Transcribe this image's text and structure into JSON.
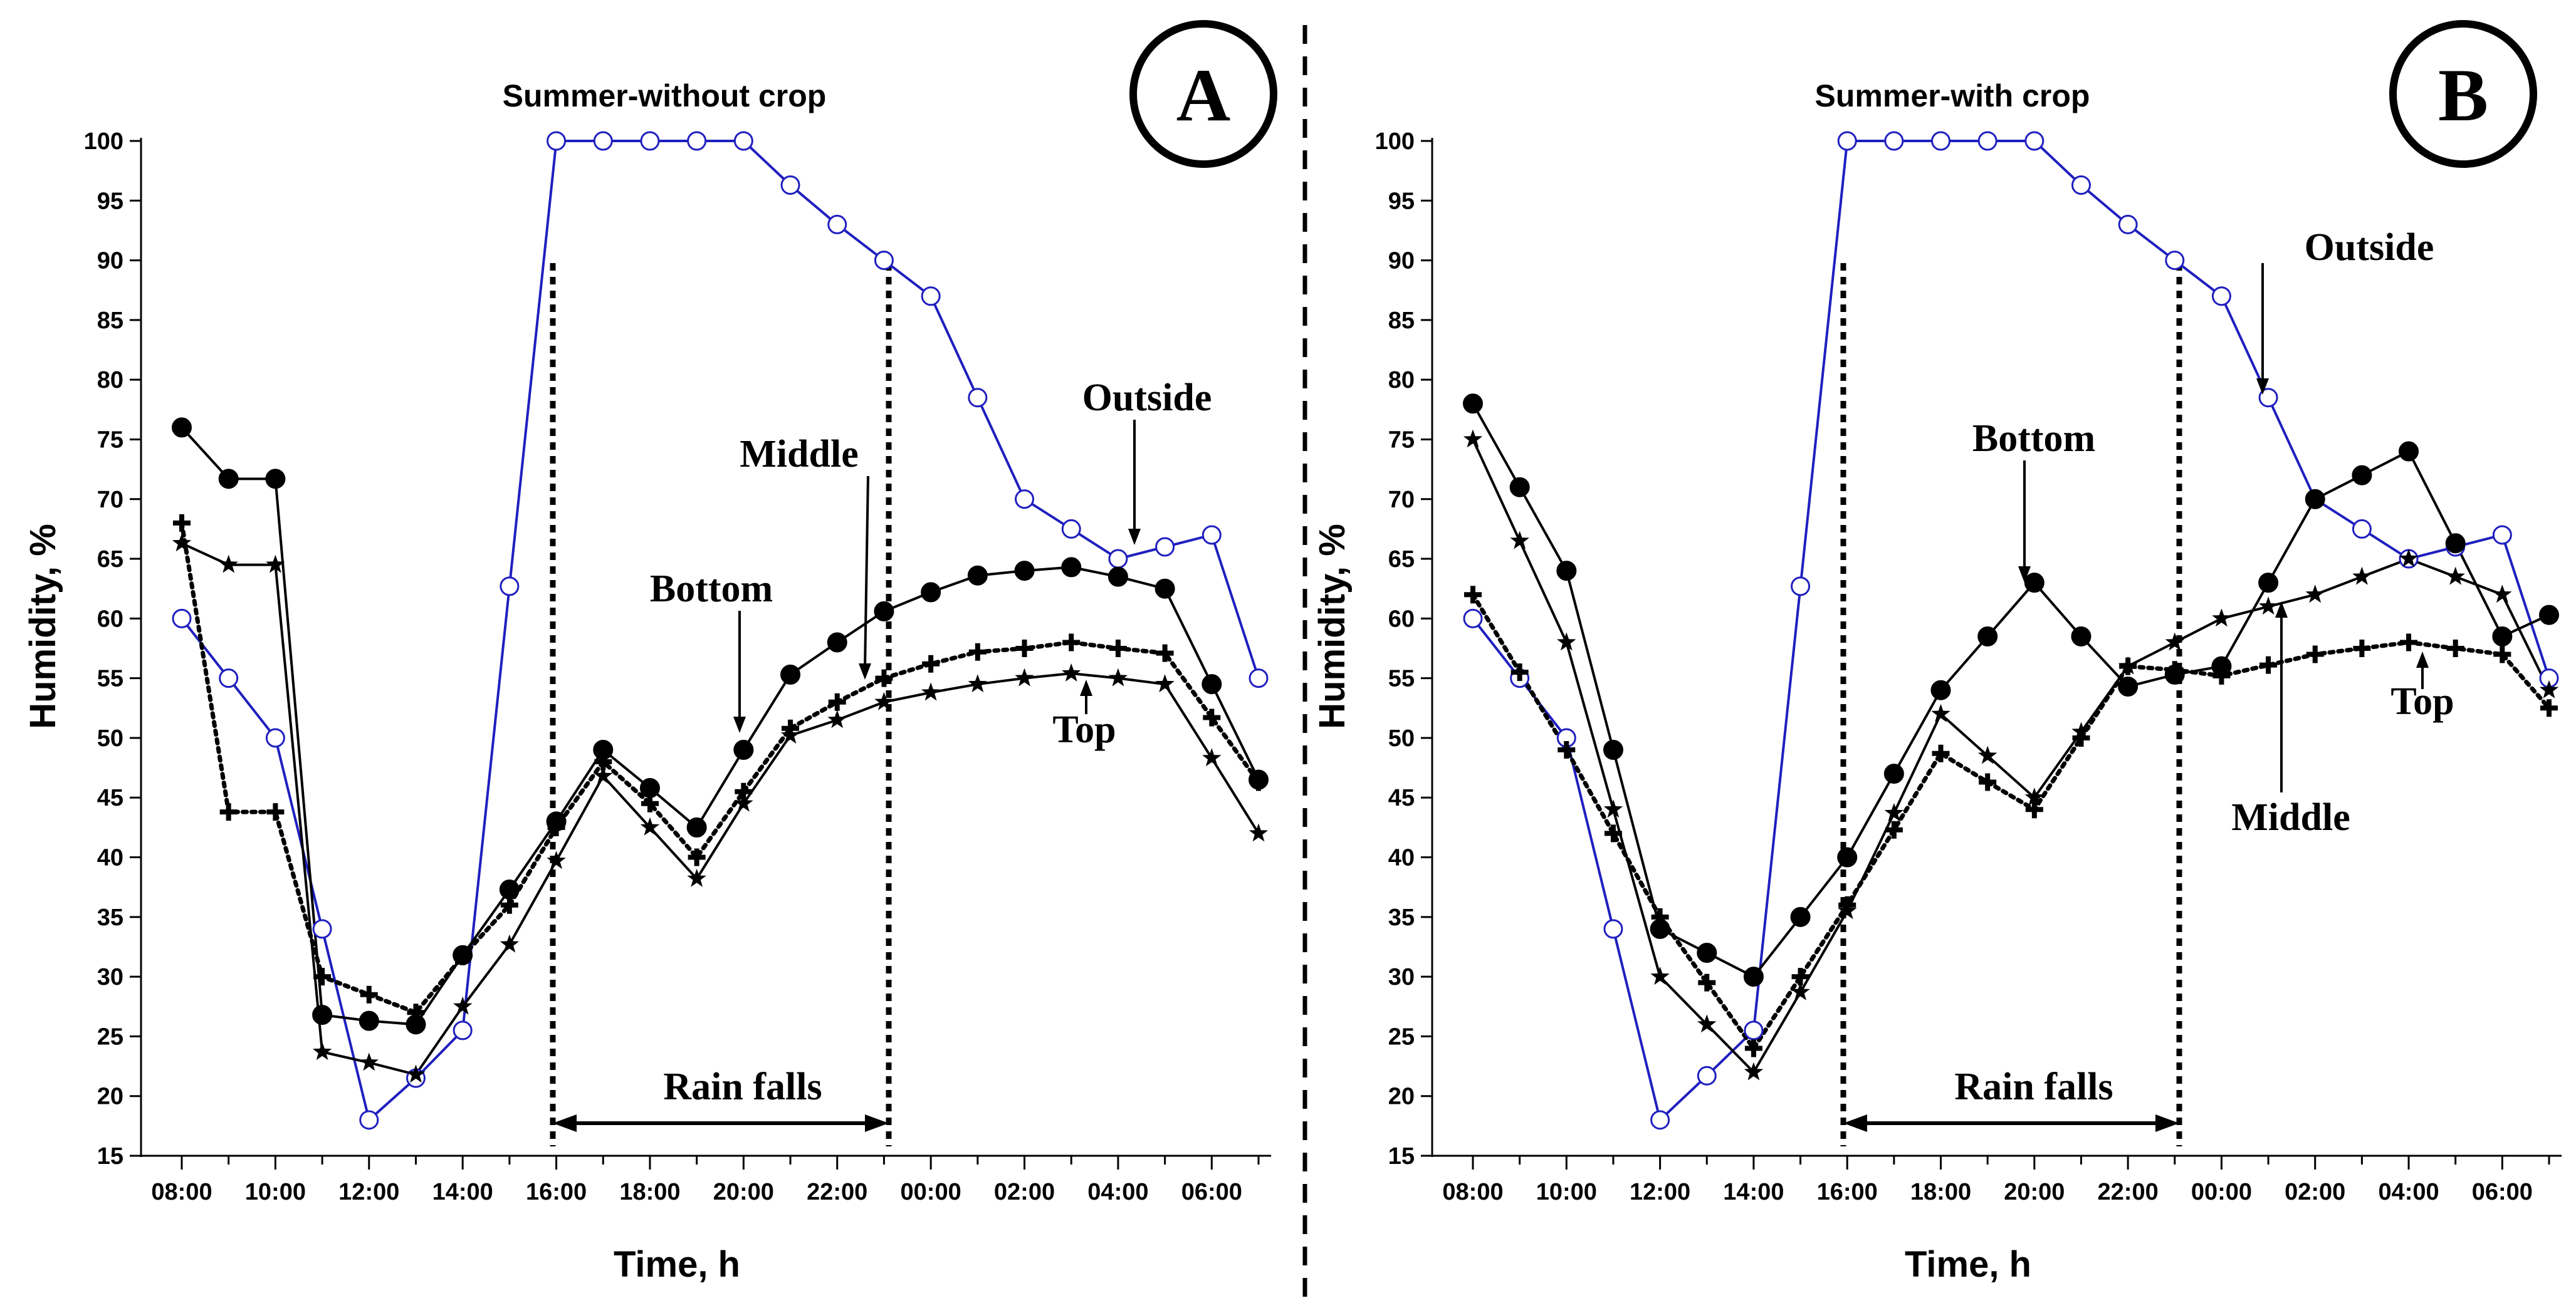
{
  "chart_data": [
    {
      "type": "line",
      "panel_label": "A",
      "title": "Summer-without crop",
      "xlabel": "Time, h",
      "ylabel": "Humidity, %",
      "ylim": [
        15,
        100
      ],
      "yticks": [
        15,
        20,
        25,
        30,
        35,
        40,
        45,
        50,
        55,
        60,
        65,
        70,
        75,
        80,
        85,
        90,
        95,
        100
      ],
      "xtick_labels": [
        "08:00",
        "10:00",
        "12:00",
        "14:00",
        "16:00",
        "18:00",
        "20:00",
        "22:00",
        "00:00",
        "02:00",
        "04:00",
        "06:00"
      ],
      "x_hours": [
        0,
        1,
        2,
        3,
        4,
        5,
        6,
        7,
        8,
        9,
        10,
        11,
        12,
        13,
        14,
        15,
        16,
        17,
        18,
        19,
        20,
        21,
        22,
        23
      ],
      "series": [
        {
          "name": "Outside",
          "marker": "open-circle",
          "color": "#1f1fbf",
          "values": [
            60,
            55,
            50,
            34,
            18,
            21.5,
            25.5,
            62.7,
            100,
            100,
            100,
            100,
            100,
            96.3,
            93,
            90,
            87,
            78.5,
            70,
            67.5,
            65,
            66,
            67,
            55
          ]
        },
        {
          "name": "Bottom",
          "marker": "filled-circle",
          "color": "#000000",
          "values": [
            76,
            71.7,
            71.7,
            26.8,
            26.3,
            26,
            31.8,
            37.3,
            43,
            49,
            45.8,
            42.5,
            49,
            55.3,
            58,
            60.6,
            62.2,
            63.6,
            64,
            64.3,
            63.5,
            62.5,
            54.5,
            46.5
          ]
        },
        {
          "name": "Middle",
          "marker": "plus",
          "color": "#000000",
          "values": [
            68,
            43.8,
            43.8,
            30,
            28.5,
            27,
            31.7,
            36,
            42.5,
            48,
            44.5,
            40,
            45.5,
            50.8,
            53,
            55,
            56.2,
            57.2,
            57.5,
            58,
            57.5,
            57.1,
            51.7,
            46.3
          ]
        },
        {
          "name": "Top",
          "marker": "star",
          "color": "#000000",
          "values": [
            66.3,
            64.5,
            64.5,
            23.7,
            22.8,
            21.8,
            27.5,
            32.7,
            39.7,
            46.8,
            42.5,
            38.2,
            44.5,
            50.2,
            51.5,
            53,
            53.8,
            54.5,
            55,
            55.4,
            55,
            54.5,
            48.3,
            42
          ]
        }
      ],
      "annotations": {
        "outside": "Outside",
        "middle": "Middle",
        "bottom": "Bottom",
        "top": "Top",
        "rain": "Rain falls"
      }
    },
    {
      "type": "line",
      "panel_label": "B",
      "title": "Summer-with crop",
      "xlabel": "Time, h",
      "ylabel": "Humidity, %",
      "ylim": [
        15,
        100
      ],
      "yticks": [
        15,
        20,
        25,
        30,
        35,
        40,
        45,
        50,
        55,
        60,
        65,
        70,
        75,
        80,
        85,
        90,
        95,
        100
      ],
      "xtick_labels": [
        "08:00",
        "10:00",
        "12:00",
        "14:00",
        "16:00",
        "18:00",
        "20:00",
        "22:00",
        "00:00",
        "02:00",
        "04:00",
        "06:00"
      ],
      "x_hours": [
        0,
        1,
        2,
        3,
        4,
        5,
        6,
        7,
        8,
        9,
        10,
        11,
        12,
        13,
        14,
        15,
        16,
        17,
        18,
        19,
        20,
        21,
        22,
        23
      ],
      "series": [
        {
          "name": "Outside",
          "marker": "open-circle",
          "color": "#1f1fbf",
          "values": [
            60,
            55,
            50,
            34,
            18,
            21.7,
            25.5,
            62.7,
            100,
            100,
            100,
            100,
            100,
            96.3,
            93,
            90,
            87,
            78.5,
            70,
            67.5,
            65,
            66,
            67,
            55
          ]
        },
        {
          "name": "Bottom",
          "marker": "filled-circle",
          "color": "#000000",
          "values": [
            78,
            71,
            64,
            49,
            34,
            32,
            30,
            35,
            40,
            47,
            54,
            58.5,
            63,
            58.5,
            54.3,
            55.3,
            56,
            63,
            70,
            72,
            74,
            66.3,
            58.5,
            60.3
          ]
        },
        {
          "name": "Middle",
          "marker": "plus",
          "color": "#000000",
          "values": [
            62,
            55.5,
            49,
            42,
            35,
            29.5,
            24,
            30,
            36,
            42.3,
            48.7,
            46.3,
            44,
            50,
            56,
            55.7,
            55.2,
            56.1,
            57,
            57.5,
            58,
            57.5,
            57,
            52.5
          ]
        },
        {
          "name": "Top",
          "marker": "star",
          "color": "#000000",
          "values": [
            75,
            66.5,
            58,
            44,
            30,
            26,
            22,
            28.7,
            35.5,
            43.7,
            52,
            48.5,
            45,
            50.5,
            56,
            58,
            60,
            61,
            62,
            63.5,
            65,
            63.5,
            62,
            54
          ]
        }
      ],
      "annotations": {
        "outside": "Outside",
        "middle": "Middle",
        "bottom": "Bottom",
        "top": "Top",
        "rain": "Rain falls"
      }
    }
  ]
}
